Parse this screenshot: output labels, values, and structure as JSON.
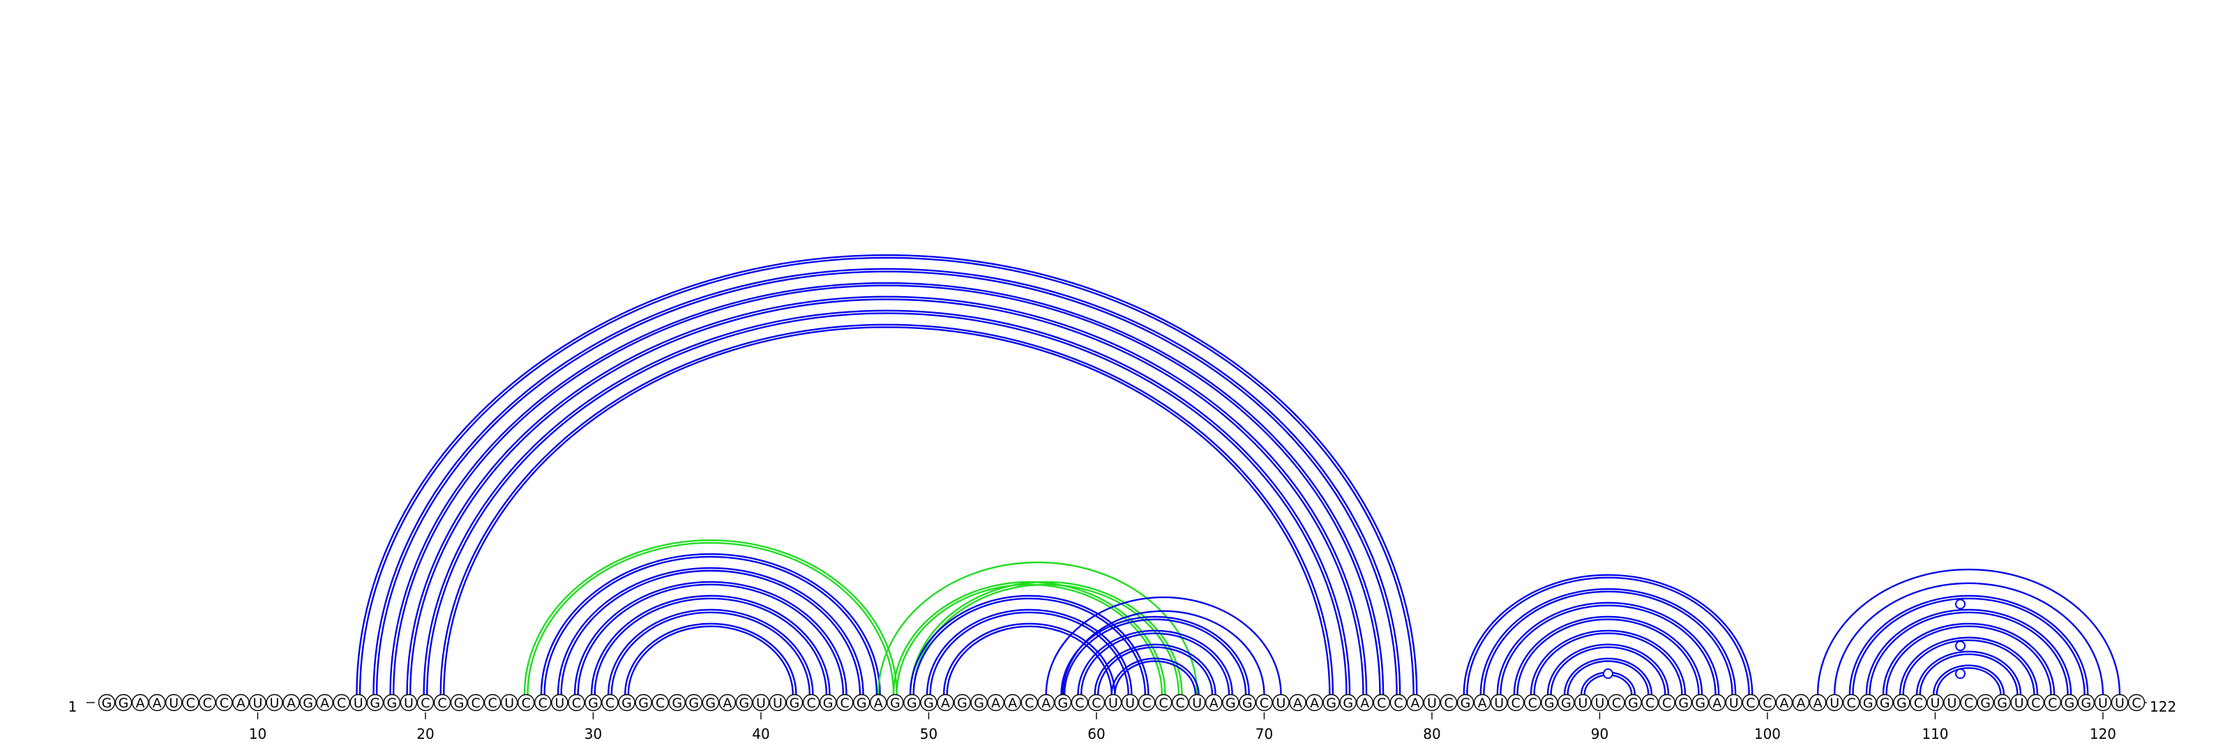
{
  "sequence": "GGAAUCCCAUUAGACUGGUCCGCCUCCUCGCGGCGGGAGUUGCGCGAGGGAGGAACAGCCUUCCCUAGGCUAAGGACCAUCGAUCCGGUUCGCCGGAUCCAAAUCGGGCUUCGGUCCGGUUC",
  "start_label": "1",
  "end_label": "122",
  "ticks": [
    "10",
    "20",
    "30",
    "40",
    "50",
    "60",
    "70",
    "80",
    "90",
    "100",
    "110",
    "120"
  ],
  "colors": {
    "primary_arc": "#0000ee",
    "secondary_arc": "#22dd22"
  },
  "arc_groups": [
    {
      "color": "primary",
      "double": true,
      "pairs": [
        [
          16,
          79
        ],
        [
          17,
          78
        ],
        [
          18,
          77
        ],
        [
          19,
          76
        ],
        [
          20,
          75
        ],
        [
          21,
          74
        ]
      ]
    },
    {
      "color": "secondary",
      "double": true,
      "pairs": [
        [
          26,
          48
        ]
      ]
    },
    {
      "color": "primary",
      "double": true,
      "pairs": [
        [
          27,
          47
        ],
        [
          28,
          46
        ],
        [
          29,
          45
        ],
        [
          30,
          44
        ],
        [
          31,
          43
        ],
        [
          32,
          42
        ]
      ]
    },
    {
      "color": "secondary",
      "double": true,
      "pairs": [
        [
          48,
          64
        ],
        [
          49,
          65
        ]
      ]
    },
    {
      "color": "secondary",
      "double": false,
      "pairs": [
        [
          47,
          66
        ]
      ]
    },
    {
      "color": "primary",
      "double": true,
      "pairs": [
        [
          49,
          63
        ],
        [
          50,
          62
        ],
        [
          51,
          61
        ]
      ]
    },
    {
      "color": "primary",
      "double": true,
      "pairs": [
        [
          58,
          69
        ],
        [
          59,
          68
        ],
        [
          60,
          67
        ],
        [
          61,
          66
        ]
      ]
    },
    {
      "color": "primary",
      "double": false,
      "pairs": [
        [
          57,
          71
        ],
        [
          58,
          70
        ]
      ]
    },
    {
      "color": "primary",
      "double": true,
      "pairs": [
        [
          82,
          99
        ],
        [
          83,
          98
        ],
        [
          84,
          97
        ],
        [
          85,
          96
        ],
        [
          86,
          95
        ],
        [
          87,
          94
        ],
        [
          88,
          93
        ],
        [
          89,
          92
        ]
      ]
    },
    {
      "color": "primary",
      "double": false,
      "pairs": [
        [
          103,
          121
        ],
        [
          104,
          120
        ]
      ]
    },
    {
      "color": "primary",
      "double": true,
      "pairs": [
        [
          105,
          119
        ],
        [
          106,
          118
        ],
        [
          107,
          117
        ],
        [
          108,
          116
        ],
        [
          109,
          115
        ],
        [
          110,
          114
        ]
      ]
    }
  ],
  "markers": [
    {
      "position": 90.5,
      "arc_span": [
        89,
        92
      ]
    },
    {
      "position": 111.5,
      "arc_span": [
        110,
        113
      ]
    },
    {
      "position": 111.5,
      "arc_span": [
        108,
        115
      ]
    },
    {
      "position": 111.5,
      "arc_span": [
        105,
        118
      ]
    }
  ]
}
